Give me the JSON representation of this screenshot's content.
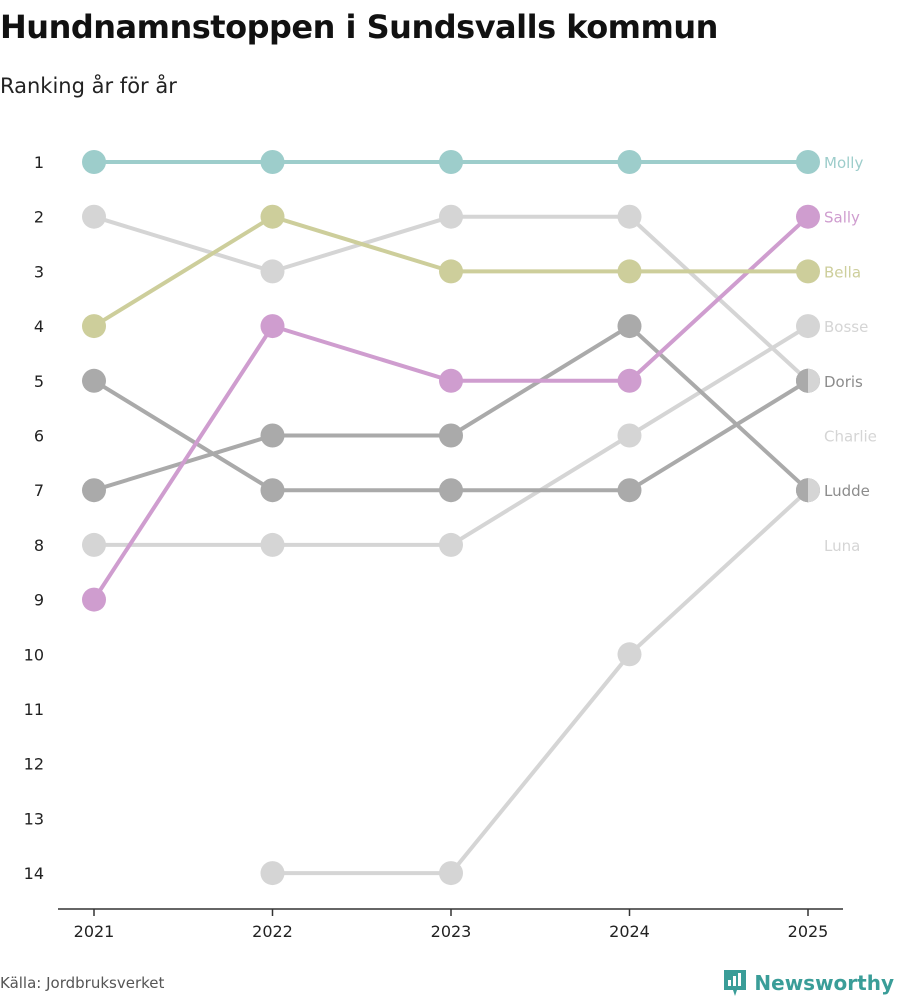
{
  "chart_data": {
    "type": "line",
    "title": "Hundnamnstoppen i Sundsvalls kommun",
    "subtitle": "Ranking år för år",
    "x": [
      "2021",
      "2022",
      "2023",
      "2024",
      "2025"
    ],
    "ylim": [
      1,
      14
    ],
    "y_ticks": [
      1,
      2,
      3,
      4,
      5,
      6,
      7,
      8,
      9,
      10,
      11,
      12,
      13,
      14
    ],
    "y_inverted": true,
    "series": [
      {
        "name": "Molly",
        "color": "#9dcdcb",
        "values": [
          1,
          1,
          1,
          1,
          1
        ]
      },
      {
        "name": "Sally",
        "color": "#cf9dcf",
        "values": [
          9,
          4,
          5,
          5,
          2
        ]
      },
      {
        "name": "Bella",
        "color": "#cdce9b",
        "values": [
          4,
          2,
          3,
          3,
          3
        ]
      },
      {
        "name": "Bosse",
        "color": "#d5d5d5",
        "values": [
          8,
          8,
          8,
          6,
          4
        ]
      },
      {
        "name": "Doris",
        "color": "#aaaaaa",
        "values": [
          5,
          7,
          7,
          7,
          5
        ]
      },
      {
        "name": "Charlie",
        "color": "#d5d5d5",
        "values": [
          2,
          3,
          2,
          2,
          5
        ]
      },
      {
        "name": "Ludde",
        "color": "#aaaaaa",
        "values": [
          7,
          6,
          6,
          4,
          7
        ]
      },
      {
        "name": "Luna",
        "color": "#d5d5d5",
        "values": [
          null,
          14,
          14,
          10,
          7
        ]
      }
    ],
    "end_labels": [
      {
        "name": "Molly",
        "color": "#9dcdcb",
        "rank": 1
      },
      {
        "name": "Sally",
        "color": "#cf9dcf",
        "rank": 2
      },
      {
        "name": "Bella",
        "color": "#cdce9b",
        "rank": 3
      },
      {
        "name": "Bosse",
        "color": "#d5d5d5",
        "rank": 4
      },
      {
        "name": "Doris",
        "color": "#8c8c8c",
        "rank": 5
      },
      {
        "name": "Charlie",
        "color": "#d5d5d5",
        "rank": 6
      },
      {
        "name": "Ludde",
        "color": "#8c8c8c",
        "rank": 7
      },
      {
        "name": "Luna",
        "color": "#d5d5d5",
        "rank": 8
      }
    ],
    "split_markers": [
      {
        "rank": 5,
        "left_color": "#aaaaaa",
        "right_color": "#d5d5d5"
      },
      {
        "rank": 7,
        "left_color": "#aaaaaa",
        "right_color": "#d5d5d5"
      }
    ]
  },
  "source": "Källa: Jordbruksverket",
  "brand": {
    "name": "Newsworthy",
    "color": "#3a9d98"
  }
}
